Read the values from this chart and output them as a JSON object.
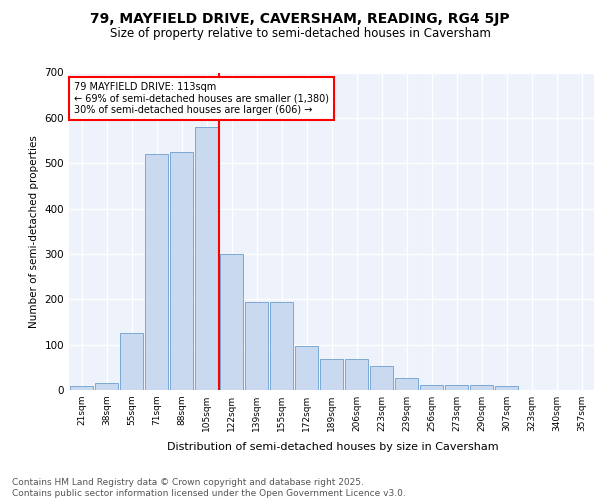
{
  "title1": "79, MAYFIELD DRIVE, CAVERSHAM, READING, RG4 5JP",
  "title2": "Size of property relative to semi-detached houses in Caversham",
  "xlabel": "Distribution of semi-detached houses by size in Caversham",
  "ylabel": "Number of semi-detached properties",
  "bins": [
    "21sqm",
    "38sqm",
    "55sqm",
    "71sqm",
    "88sqm",
    "105sqm",
    "122sqm",
    "139sqm",
    "155sqm",
    "172sqm",
    "189sqm",
    "206sqm",
    "223sqm",
    "239sqm",
    "256sqm",
    "273sqm",
    "290sqm",
    "307sqm",
    "323sqm",
    "340sqm",
    "357sqm"
  ],
  "values": [
    8,
    15,
    125,
    520,
    525,
    580,
    300,
    195,
    195,
    98,
    68,
    68,
    52,
    27,
    12,
    10,
    10,
    8,
    0,
    0,
    0
  ],
  "bar_color": "#c9d9f0",
  "bar_edge_color": "#7aa8d4",
  "vline_color": "red",
  "vline_bin_index": 5,
  "annotation_title": "79 MAYFIELD DRIVE: 113sqm",
  "annotation_line1": "← 69% of semi-detached houses are smaller (1,380)",
  "annotation_line2": "30% of semi-detached houses are larger (606) →",
  "ylim": [
    0,
    700
  ],
  "yticks": [
    0,
    100,
    200,
    300,
    400,
    500,
    600,
    700
  ],
  "background_color": "#eef3fb",
  "footer1": "Contains HM Land Registry data © Crown copyright and database right 2025.",
  "footer2": "Contains public sector information licensed under the Open Government Licence v3.0."
}
